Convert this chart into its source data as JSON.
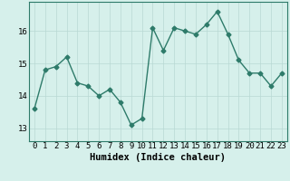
{
  "xlabel": "Humidex (Indice chaleur)",
  "x": [
    0,
    1,
    2,
    3,
    4,
    5,
    6,
    7,
    8,
    9,
    10,
    11,
    12,
    13,
    14,
    15,
    16,
    17,
    18,
    19,
    20,
    21,
    22,
    23
  ],
  "y": [
    13.6,
    14.8,
    14.9,
    15.2,
    14.4,
    14.3,
    14.0,
    14.2,
    13.8,
    13.1,
    13.3,
    16.1,
    15.4,
    16.1,
    16.0,
    15.9,
    16.2,
    16.6,
    15.9,
    15.1,
    14.7,
    14.7,
    14.3,
    14.7
  ],
  "ylim": [
    12.6,
    16.9
  ],
  "yticks": [
    13,
    14,
    15,
    16
  ],
  "xticks": [
    0,
    1,
    2,
    3,
    4,
    5,
    6,
    7,
    8,
    9,
    10,
    11,
    12,
    13,
    14,
    15,
    16,
    17,
    18,
    19,
    20,
    21,
    22,
    23
  ],
  "line_color": "#2e7b6a",
  "marker": "D",
  "marker_size": 2.5,
  "line_width": 1.0,
  "bg_color": "#d6f0eb",
  "grid_color": "#b8d8d4",
  "tick_label_fontsize": 6.5,
  "xlabel_fontsize": 7.5,
  "font_family": "monospace"
}
